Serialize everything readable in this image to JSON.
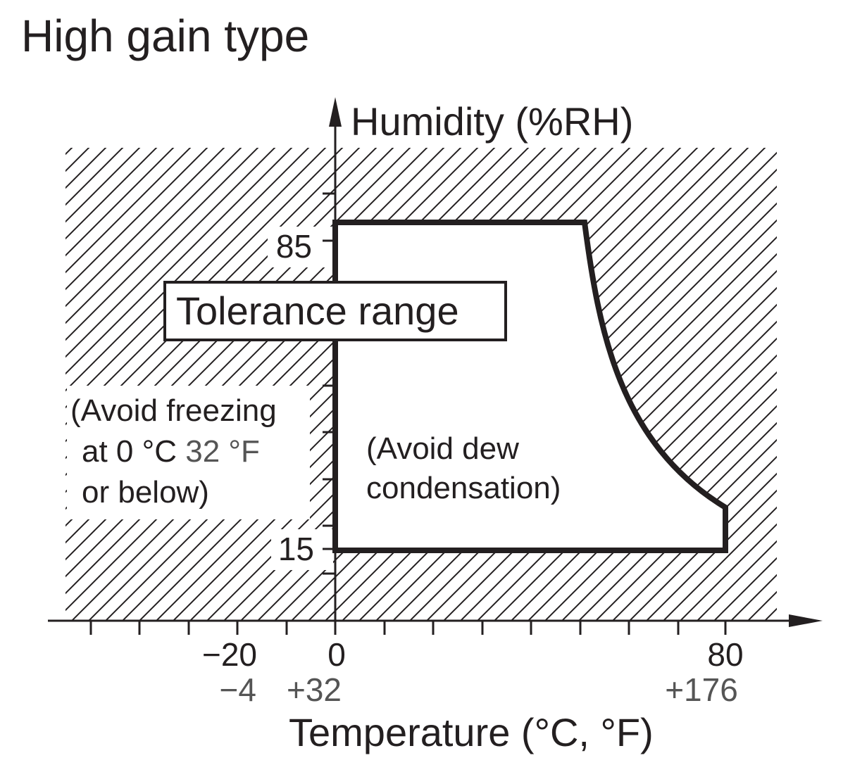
{
  "title": "High gain type",
  "y_axis": {
    "label": "Humidity (%RH)",
    "ticks_labeled": [
      "85",
      "15"
    ]
  },
  "x_axis": {
    "label": "Temperature (°C, °F)",
    "ticks_c": [
      "−20",
      "0",
      "80"
    ],
    "ticks_f": [
      "−4",
      "+32",
      "+176"
    ]
  },
  "tolerance_label": "Tolerance range",
  "freeze_note": {
    "line1": "(Avoid freezing",
    "line2_prefix": "at 0 °C ",
    "line2_suffix": "32 °F",
    "line3": "or below)"
  },
  "dew_note": {
    "line1": "(Avoid dew",
    "line2": "condensation)"
  },
  "chart_data": {
    "type": "area",
    "title": "High gain type",
    "xlabel": "Temperature (°C, °F)",
    "ylabel": "Humidity (%RH)",
    "x_ticks_c": [
      -20,
      0,
      80
    ],
    "x_ticks_f": [
      -4,
      32,
      176
    ],
    "y_ticks": [
      15,
      85
    ],
    "series": [
      {
        "name": "Tolerance range",
        "boundary": [
          {
            "x": 0,
            "y": 15
          },
          {
            "x": 0,
            "y": 85
          },
          {
            "x": 50,
            "y": 85
          },
          {
            "x": 80,
            "y": 24
          },
          {
            "x": 80,
            "y": 15
          }
        ]
      }
    ]
  }
}
